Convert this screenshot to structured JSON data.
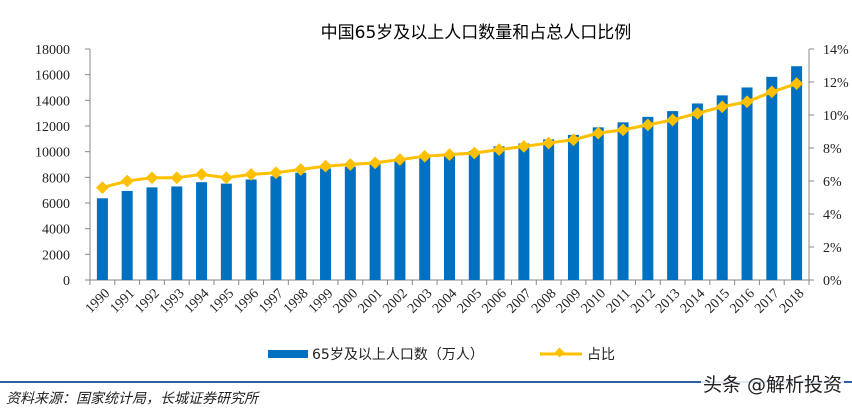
{
  "chart_data": {
    "type": "bar",
    "title": "中国65岁及以上人口数量和占总人口比例",
    "categories": [
      "1990",
      "1991",
      "1992",
      "1993",
      "1994",
      "1995",
      "1996",
      "1997",
      "1998",
      "1999",
      "2000",
      "2001",
      "2002",
      "2003",
      "2004",
      "2005",
      "2006",
      "2007",
      "2008",
      "2009",
      "2010",
      "2011",
      "2012",
      "2013",
      "2014",
      "2015",
      "2016",
      "2017",
      "2018"
    ],
    "series": [
      {
        "name": "65岁及以上人口数（万人）",
        "type": "bar",
        "axis": "left",
        "color": "#0070c0",
        "values": [
          6368,
          6938,
          7218,
          7289,
          7622,
          7510,
          7833,
          8085,
          8359,
          8679,
          8821,
          9062,
          9377,
          9692,
          9857,
          10055,
          10419,
          10636,
          10956,
          11307,
          11894,
          12288,
          12714,
          13161,
          13755,
          14386,
          15003,
          15831,
          16658
        ]
      },
      {
        "name": "占比",
        "type": "line",
        "axis": "right",
        "color": "#ffc000",
        "values": [
          5.6,
          6.0,
          6.2,
          6.2,
          6.4,
          6.2,
          6.4,
          6.5,
          6.7,
          6.9,
          7.0,
          7.1,
          7.3,
          7.5,
          7.6,
          7.7,
          7.9,
          8.1,
          8.3,
          8.5,
          8.9,
          9.1,
          9.4,
          9.7,
          10.1,
          10.5,
          10.8,
          11.4,
          11.9
        ]
      }
    ],
    "y_left": {
      "ylim": [
        0,
        18000
      ],
      "ticks": [
        "0",
        "2000",
        "4000",
        "6000",
        "8000",
        "10000",
        "12000",
        "14000",
        "16000",
        "18000"
      ]
    },
    "y_right": {
      "ylim": [
        0,
        14
      ],
      "ticks": [
        "0%",
        "2%",
        "4%",
        "6%",
        "8%",
        "10%",
        "12%",
        "14%"
      ]
    },
    "xlabel": "",
    "ylabel": "",
    "grid": false,
    "legend_position": "bottom"
  },
  "source_note": "资料来源：国家统计局，长城证券研究所",
  "watermark": "头条 @解析投资"
}
